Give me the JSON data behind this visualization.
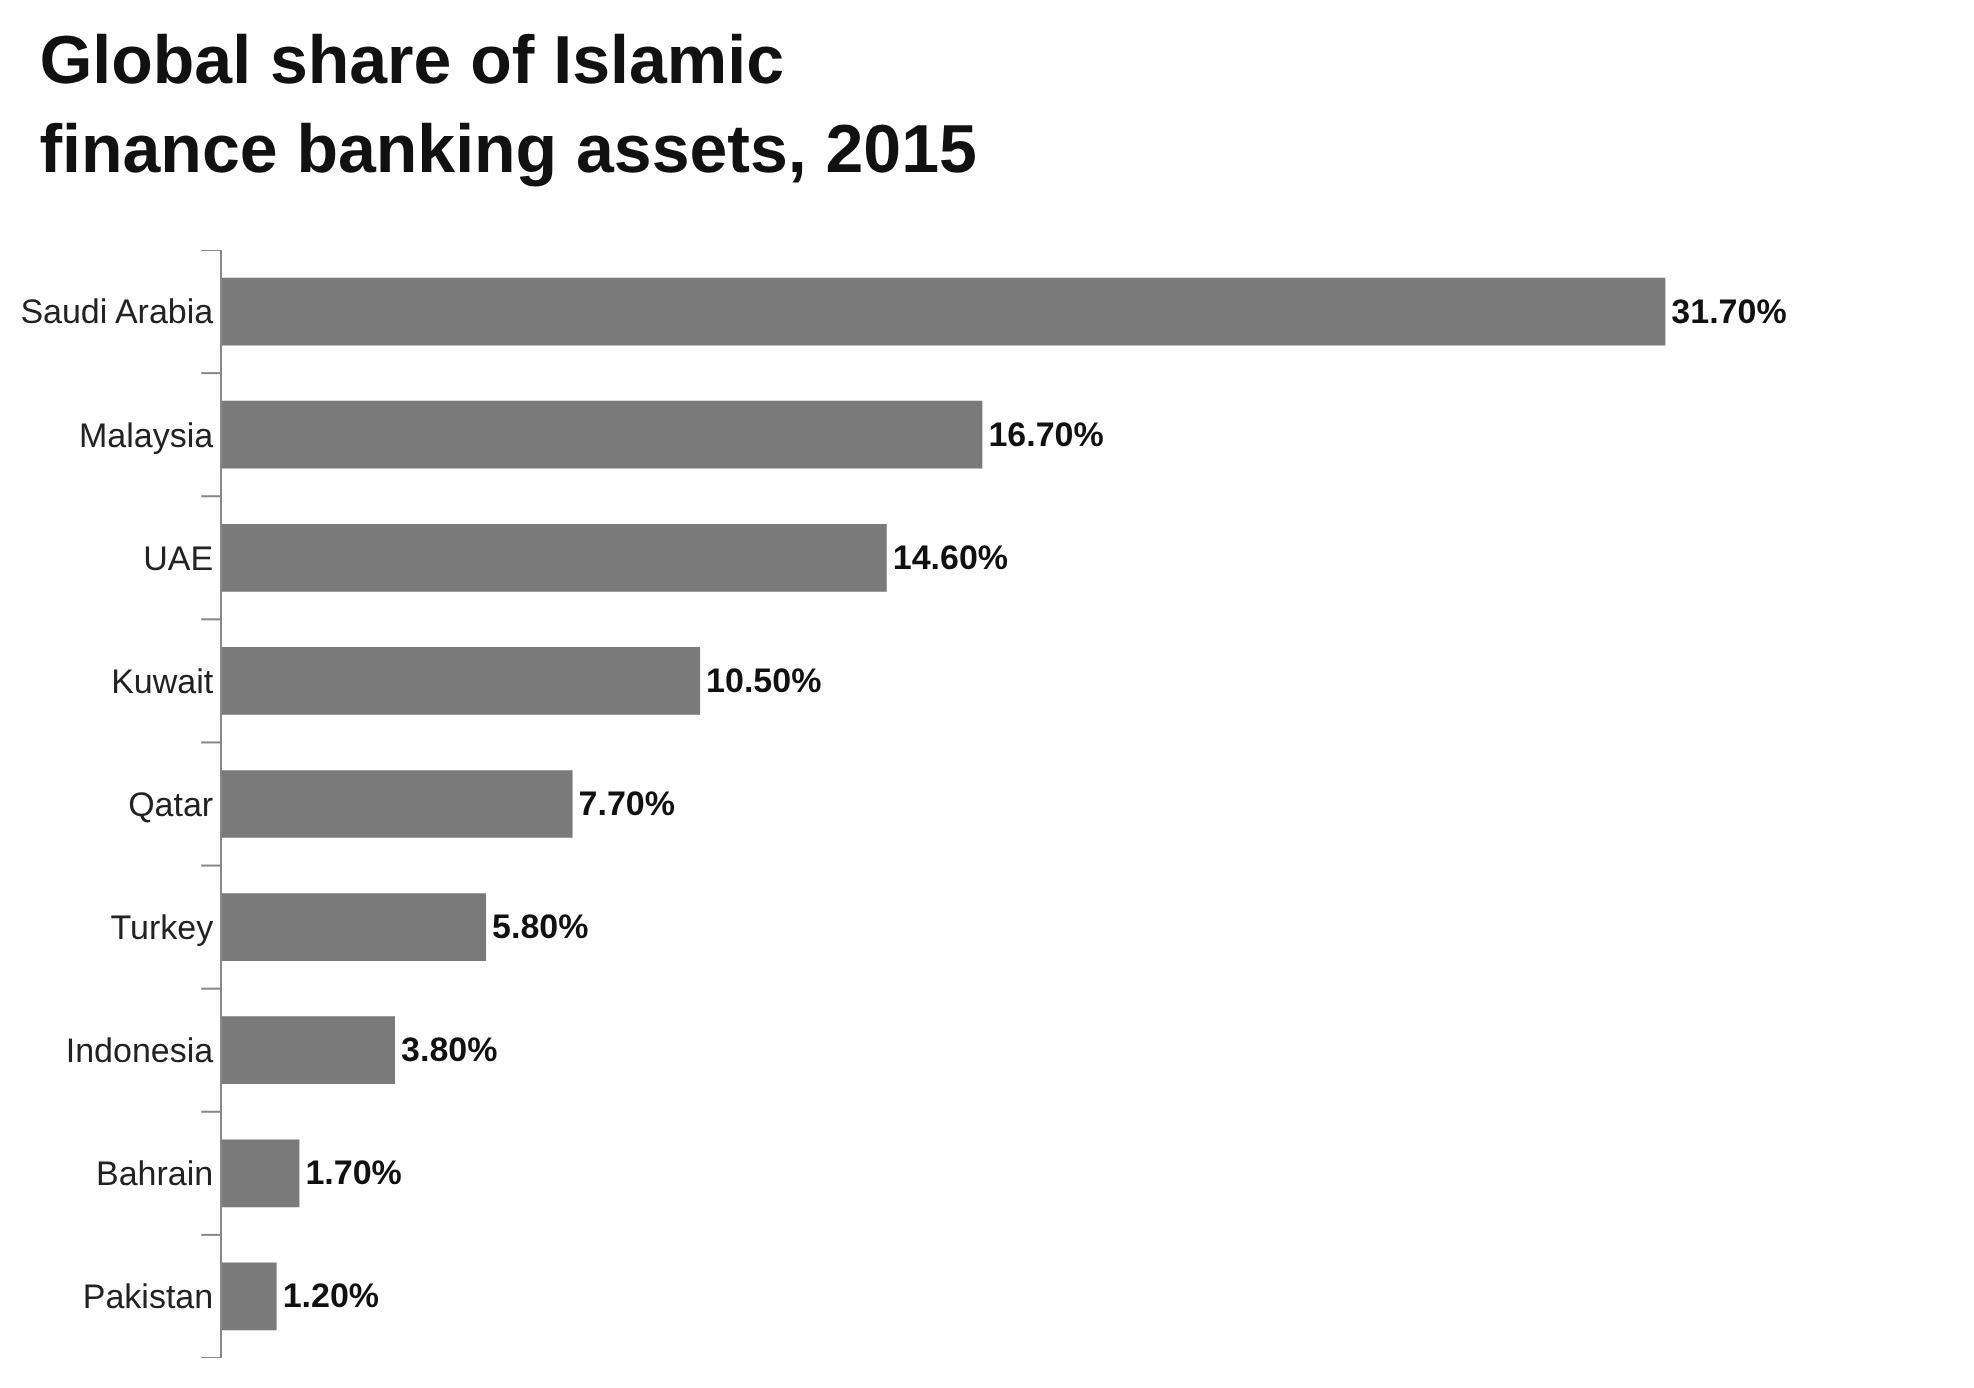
{
  "chart_data": {
    "type": "bar",
    "orientation": "horizontal",
    "title": "Global share of Islamic\nfinance banking assets, 2015",
    "categories": [
      "Saudi Arabia",
      "Malaysia",
      "UAE",
      "Kuwait",
      "Qatar",
      "Turkey",
      "Indonesia",
      "Bahrain",
      "Pakistan"
    ],
    "values": [
      31.7,
      16.7,
      14.6,
      10.5,
      7.7,
      5.8,
      3.8,
      1.7,
      1.2
    ],
    "value_labels": [
      "31.70%",
      "16.70%",
      "14.60%",
      "10.50%",
      "7.70%",
      "5.80%",
      "3.80%",
      "1.70%",
      "1.20%"
    ],
    "color": "#7a7a7a",
    "legend": false
  }
}
